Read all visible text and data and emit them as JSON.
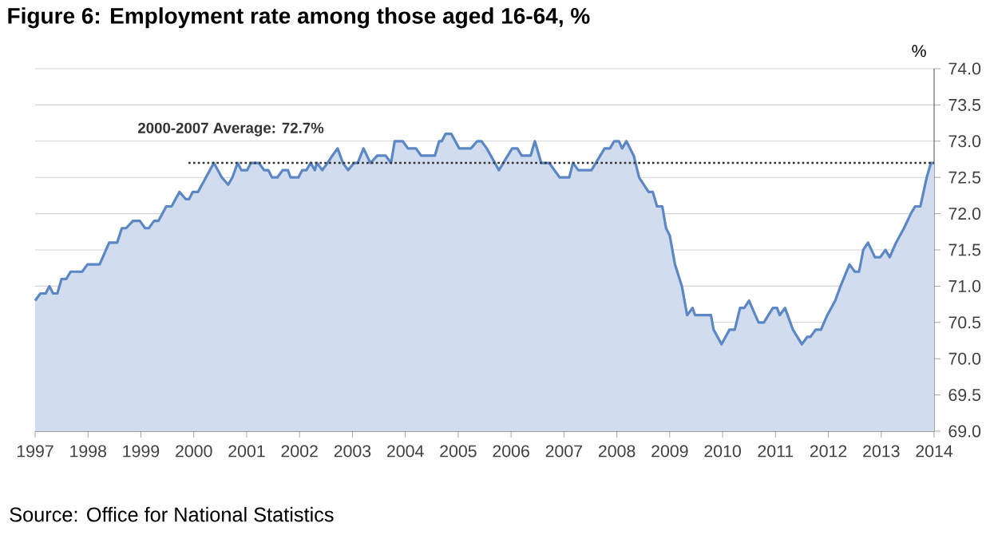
{
  "chart_data": {
    "type": "area",
    "title": "Figure 6: Employment rate among those aged 16-64, %",
    "ylabel": "%",
    "annotations": [
      {
        "text": "2000-2007 Average: 72.7%",
        "x": 2000.7,
        "y": 72.7
      },
      "Source: Office for National Statistics"
    ],
    "xlim": [
      1997,
      2014
    ],
    "xticks": [
      1997,
      1998,
      1999,
      2000,
      2001,
      2002,
      2003,
      2004,
      2005,
      2006,
      2007,
      2008,
      2009,
      2010,
      2011,
      2012,
      2013,
      2014
    ],
    "ylim": [
      69,
      74
    ],
    "yticks": [
      {
        "value": 69,
        "label": "69.0"
      },
      {
        "value": 69.5,
        "label": "69.5"
      },
      {
        "value": 70,
        "label": "70.0"
      },
      {
        "value": 70.5,
        "label": "70.5"
      },
      {
        "value": 71,
        "label": "71.0"
      },
      {
        "value": 71.5,
        "label": "71.5"
      },
      {
        "value": 72,
        "label": "72.0"
      },
      {
        "value": 72.5,
        "label": "72.5"
      },
      {
        "value": 73,
        "label": "73.0"
      },
      {
        "value": 73.5,
        "label": "73.5"
      },
      {
        "value": 74,
        "label": "74.0"
      }
    ],
    "grid": "y",
    "series": [
      {
        "color": "#5b87c5",
        "x": [
          1997.0,
          1997.1,
          1997.2,
          1997.27,
          1997.34,
          1997.42,
          1997.5,
          1997.59,
          1997.67,
          1997.89,
          1997.99,
          1998.22,
          1998.4,
          1998.55,
          1998.64,
          1998.72,
          1998.85,
          1998.98,
          1999.08,
          1999.15,
          1999.25,
          1999.33,
          1999.48,
          1999.58,
          1999.73,
          1999.85,
          1999.91,
          1999.98,
          2000.08,
          2000.23,
          2000.38,
          2000.53,
          2000.65,
          2000.73,
          2000.83,
          2000.9,
          2001.01,
          2001.08,
          2001.23,
          2001.33,
          2001.41,
          2001.48,
          2001.58,
          2001.68,
          2001.78,
          2001.83,
          2001.98,
          2002.05,
          2002.13,
          2002.21,
          2002.29,
          2002.33,
          2002.43,
          2002.53,
          2002.62,
          2002.72,
          2002.82,
          2002.92,
          2003.03,
          2003.1,
          2003.21,
          2003.34,
          2003.47,
          2003.63,
          2003.73,
          2003.8,
          2003.95,
          2004.05,
          2004.2,
          2004.3,
          2004.56,
          2004.64,
          2004.69,
          2004.76,
          2004.87,
          2005.02,
          2005.24,
          2005.36,
          2005.44,
          2005.54,
          2005.77,
          2006.02,
          2006.12,
          2006.2,
          2006.37,
          2006.45,
          2006.57,
          2006.72,
          2006.92,
          2007.1,
          2007.17,
          2007.27,
          2007.52,
          2007.77,
          2007.87,
          2007.95,
          2008.04,
          2008.1,
          2008.18,
          2008.32,
          2008.42,
          2008.6,
          2008.68,
          2008.76,
          2008.86,
          2008.93,
          2009.0,
          2009.1,
          2009.23,
          2009.33,
          2009.43,
          2009.48,
          2009.78,
          2009.83,
          2009.98,
          2010.13,
          2010.23,
          2010.33,
          2010.41,
          2010.5,
          2010.68,
          2010.78,
          2010.95,
          2011.03,
          2011.08,
          2011.18,
          2011.33,
          2011.5,
          2011.6,
          2011.66,
          2011.76,
          2011.86,
          2011.98,
          2012.13,
          2012.23,
          2012.4,
          2012.5,
          2012.58,
          2012.66,
          2012.75,
          2012.88,
          2012.98,
          2013.08,
          2013.16,
          2013.28,
          2013.43,
          2013.56,
          2013.64,
          2013.74,
          2013.86,
          2013.94,
          2014.0
        ],
        "values": [
          70.8,
          70.9,
          70.9,
          71.0,
          70.9,
          70.9,
          71.1,
          71.1,
          71.2,
          71.2,
          71.3,
          71.3,
          71.6,
          71.6,
          71.8,
          71.8,
          71.9,
          71.9,
          71.8,
          71.8,
          71.9,
          71.9,
          72.1,
          72.1,
          72.3,
          72.2,
          72.2,
          72.3,
          72.3,
          72.5,
          72.7,
          72.5,
          72.4,
          72.5,
          72.7,
          72.6,
          72.6,
          72.7,
          72.7,
          72.6,
          72.6,
          72.5,
          72.5,
          72.6,
          72.6,
          72.5,
          72.5,
          72.6,
          72.6,
          72.7,
          72.6,
          72.7,
          72.6,
          72.7,
          72.8,
          72.9,
          72.7,
          72.6,
          72.7,
          72.7,
          72.9,
          72.7,
          72.8,
          72.8,
          72.7,
          73.0,
          73.0,
          72.9,
          72.9,
          72.8,
          72.8,
          73.0,
          73.0,
          73.1,
          73.1,
          72.9,
          72.9,
          73.0,
          73.0,
          72.9,
          72.6,
          72.9,
          72.9,
          72.8,
          72.8,
          73.0,
          72.7,
          72.7,
          72.5,
          72.5,
          72.7,
          72.6,
          72.6,
          72.9,
          72.9,
          73.0,
          73.0,
          72.9,
          73.0,
          72.8,
          72.5,
          72.3,
          72.3,
          72.1,
          72.1,
          71.8,
          71.7,
          71.3,
          71.0,
          70.6,
          70.7,
          70.6,
          70.6,
          70.4,
          70.2,
          70.4,
          70.4,
          70.7,
          70.7,
          70.8,
          70.5,
          70.5,
          70.7,
          70.7,
          70.6,
          70.7,
          70.4,
          70.2,
          70.3,
          70.3,
          70.4,
          70.4,
          70.6,
          70.8,
          71.0,
          71.3,
          71.2,
          71.2,
          71.5,
          71.6,
          71.4,
          71.4,
          71.5,
          71.4,
          71.6,
          71.8,
          72.0,
          72.1,
          72.1,
          72.5,
          72.7,
          72.7
        ]
      },
      {
        "type": "line",
        "color": "#333333",
        "line_style": "dotted",
        "x": [
          1999.9,
          2014.0
        ],
        "values": [
          72.7,
          72.7
        ]
      }
    ]
  }
}
